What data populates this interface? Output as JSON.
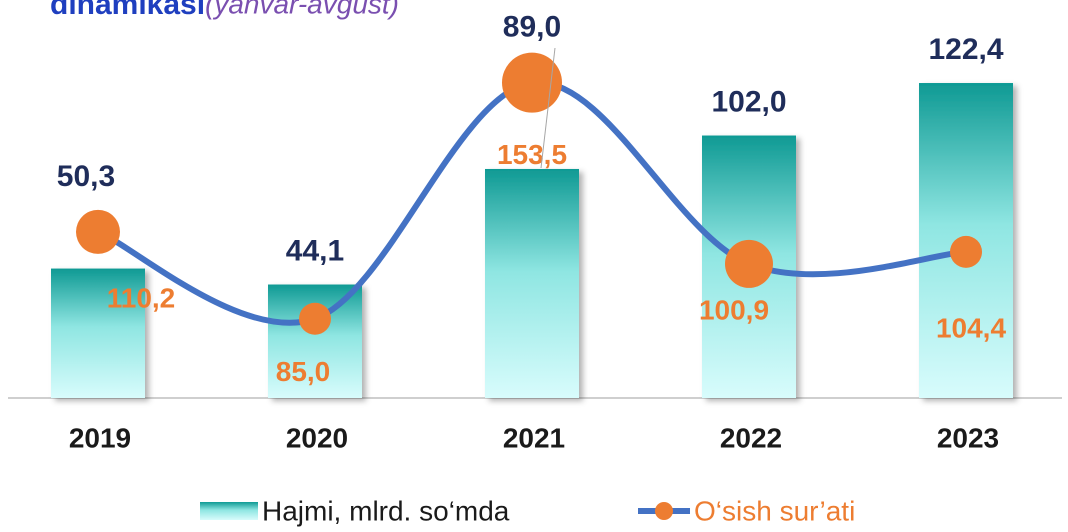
{
  "chart_data": {
    "type": "bar_line",
    "title": "dinamikasi",
    "subtitle": "(yanvar-avgust)",
    "categories": [
      "2019",
      "2020",
      "2021",
      "2022",
      "2023"
    ],
    "ylim": [
      0,
      150
    ],
    "y2lim": [
      62,
      174
    ],
    "series": [
      {
        "name": "Hajmi, mlrd. so‘mda",
        "type": "bar",
        "color": "#0f9a94",
        "values": [
          50.3,
          44.1,
          89.0,
          102.0,
          122.4
        ],
        "value_labels": [
          "50,3",
          "44,1",
          "89,0",
          "102,0",
          "122,4"
        ]
      },
      {
        "name": "O‘sish sur’ati",
        "type": "line",
        "axis": "y2",
        "color": "#4472c4",
        "marker_color": "#ed7d31",
        "values": [
          110.2,
          85.0,
          153.5,
          100.9,
          104.4
        ],
        "value_labels": [
          "110,2",
          "85,0",
          "153,5",
          "100,9",
          "104,4"
        ]
      }
    ],
    "legend": "bottom"
  }
}
